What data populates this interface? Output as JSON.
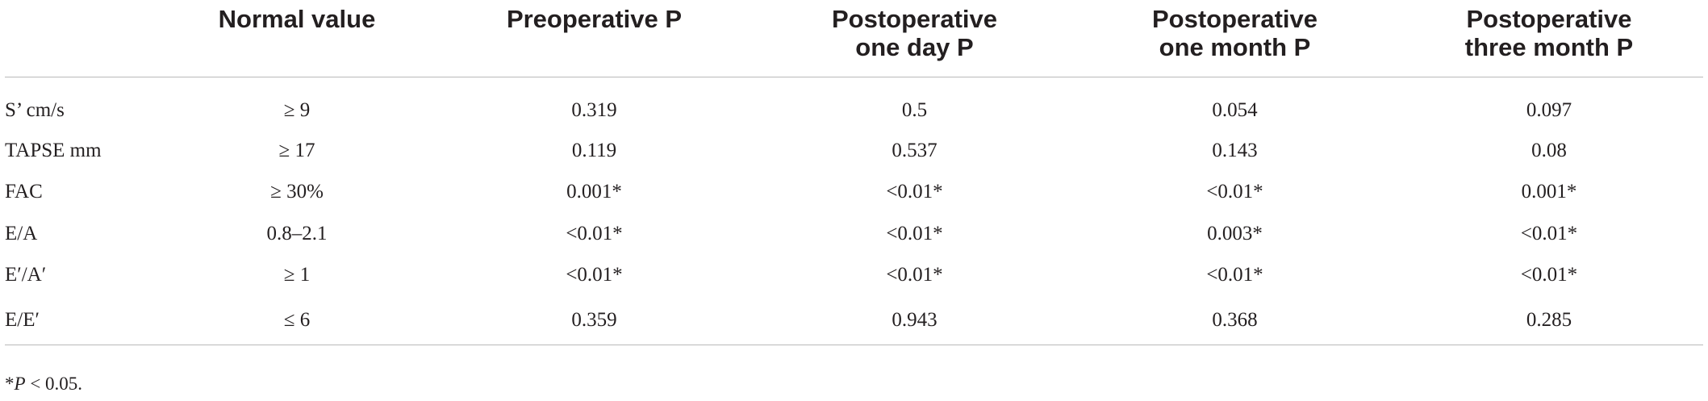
{
  "table": {
    "headers": [
      [
        ""
      ],
      [
        "Normal value"
      ],
      [
        "Preoperative P"
      ],
      [
        "Postoperative",
        "one day P"
      ],
      [
        "Postoperative",
        "one month P"
      ],
      [
        "Postoperative",
        "three month P"
      ]
    ],
    "rows": [
      [
        "S’ cm/s",
        "≥ 9",
        "0.319",
        "0.5",
        "0.054",
        "0.097"
      ],
      [
        "TAPSE mm",
        "≥ 17",
        "0.119",
        "0.537",
        "0.143",
        "0.08"
      ],
      [
        "FAC",
        "≥ 30%",
        "0.001*",
        "<0.01*",
        "<0.01*",
        "0.001*"
      ],
      [
        "E/A",
        "0.8–2.1",
        "<0.01*",
        "<0.01*",
        "0.003*",
        "<0.01*"
      ],
      [
        "E′/A′",
        "≥ 1",
        "<0.01*",
        "<0.01*",
        "<0.01*",
        "<0.01*"
      ],
      [
        "E/E′",
        "≤ 6",
        "0.359",
        "0.943",
        "0.368",
        "0.285"
      ]
    ]
  },
  "footnote": {
    "mark": "*",
    "italic": "P",
    "text": " < 0.05."
  }
}
